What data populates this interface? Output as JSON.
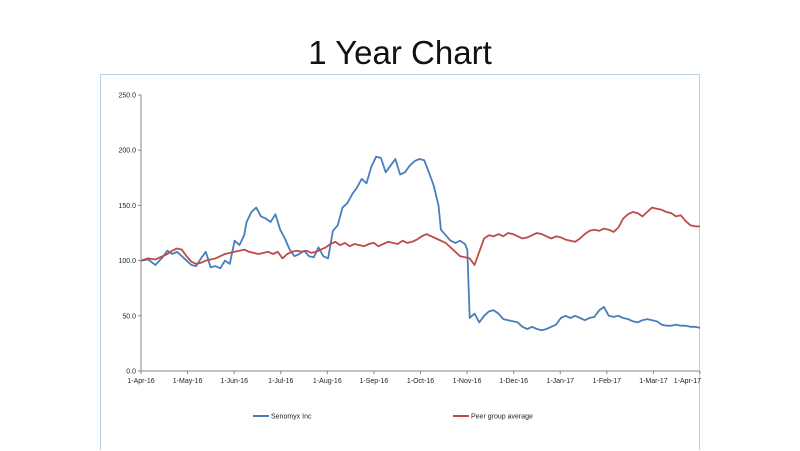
{
  "slide": {
    "title": "1 Year Chart"
  },
  "chart_data": {
    "type": "line",
    "title": "",
    "xlabel": "",
    "ylabel": "",
    "ylim": [
      0,
      250
    ],
    "y_ticks": [
      "0.0",
      "50.0",
      "100.0",
      "150.0",
      "200.0",
      "250.0"
    ],
    "x_ticks": [
      "1-Apr-16",
      "1-May-16",
      "1-Jun-16",
      "1-Jul-16",
      "1-Aug-16",
      "1-Sep-16",
      "1-Oct-16",
      "1-Nov-16",
      "1-Dec-16",
      "1-Jan-17",
      "1-Feb-17",
      "1-Mar-17",
      "1-Apr-17"
    ],
    "grid": false,
    "legend_position": "bottom",
    "series": [
      {
        "name": "Senomyx Inc",
        "color": "#4a7ebb",
        "points": [
          [
            0,
            100
          ],
          [
            3,
            101
          ],
          [
            6,
            96
          ],
          [
            9,
            103
          ],
          [
            11,
            109
          ],
          [
            13,
            106
          ],
          [
            15,
            108
          ],
          [
            17,
            104
          ],
          [
            19,
            100
          ],
          [
            21,
            96
          ],
          [
            23,
            95
          ],
          [
            25,
            102
          ],
          [
            27,
            108
          ],
          [
            29,
            94
          ],
          [
            31,
            95
          ],
          [
            33,
            93
          ],
          [
            35,
            100
          ],
          [
            37,
            97
          ],
          [
            39,
            118
          ],
          [
            41,
            114
          ],
          [
            43,
            123
          ],
          [
            44,
            135
          ],
          [
            46,
            144
          ],
          [
            48,
            148
          ],
          [
            50,
            140
          ],
          [
            52,
            138
          ],
          [
            54,
            135
          ],
          [
            56,
            142
          ],
          [
            58,
            128
          ],
          [
            60,
            120
          ],
          [
            62,
            110
          ],
          [
            64,
            104
          ],
          [
            66,
            106
          ],
          [
            68,
            109
          ],
          [
            70,
            104
          ],
          [
            72,
            103
          ],
          [
            74,
            112
          ],
          [
            76,
            104
          ],
          [
            78,
            102
          ],
          [
            80,
            127
          ],
          [
            82,
            132
          ],
          [
            84,
            148
          ],
          [
            86,
            152
          ],
          [
            88,
            160
          ],
          [
            90,
            166
          ],
          [
            92,
            174
          ],
          [
            94,
            170
          ],
          [
            96,
            185
          ],
          [
            98,
            194
          ],
          [
            100,
            193
          ],
          [
            102,
            180
          ],
          [
            104,
            186
          ],
          [
            106,
            192
          ],
          [
            108,
            178
          ],
          [
            110,
            180
          ],
          [
            112,
            186
          ],
          [
            114,
            190
          ],
          [
            116,
            192
          ],
          [
            118,
            191
          ],
          [
            120,
            180
          ],
          [
            122,
            168
          ],
          [
            124,
            150
          ],
          [
            125,
            128
          ],
          [
            127,
            123
          ],
          [
            129,
            118
          ],
          [
            131,
            116
          ],
          [
            133,
            118
          ],
          [
            135,
            115
          ],
          [
            136,
            110
          ],
          [
            137,
            48
          ],
          [
            139,
            52
          ],
          [
            141,
            44
          ],
          [
            143,
            50
          ],
          [
            145,
            54
          ],
          [
            147,
            55
          ],
          [
            149,
            52
          ],
          [
            151,
            47
          ],
          [
            153,
            46
          ],
          [
            155,
            45
          ],
          [
            157,
            44
          ],
          [
            159,
            40
          ],
          [
            161,
            38
          ],
          [
            163,
            40
          ],
          [
            165,
            38
          ],
          [
            167,
            37
          ],
          [
            169,
            38
          ],
          [
            171,
            40
          ],
          [
            173,
            42
          ],
          [
            175,
            48
          ],
          [
            177,
            50
          ],
          [
            179,
            48
          ],
          [
            181,
            50
          ],
          [
            183,
            48
          ],
          [
            185,
            46
          ],
          [
            187,
            48
          ],
          [
            189,
            49
          ],
          [
            191,
            55
          ],
          [
            193,
            58
          ],
          [
            195,
            50
          ],
          [
            197,
            49
          ],
          [
            199,
            50
          ],
          [
            201,
            48
          ],
          [
            203,
            47
          ],
          [
            205,
            45
          ],
          [
            207,
            44
          ],
          [
            209,
            46
          ],
          [
            211,
            47
          ],
          [
            213,
            46
          ],
          [
            215,
            45
          ],
          [
            217,
            42
          ],
          [
            219,
            41
          ],
          [
            221,
            41
          ],
          [
            223,
            42
          ],
          [
            225,
            41
          ],
          [
            227,
            41
          ],
          [
            229,
            40
          ],
          [
            231,
            40
          ],
          [
            233,
            39
          ]
        ]
      },
      {
        "name": "Peer group average",
        "color": "#be4b48",
        "points": [
          [
            0,
            100
          ],
          [
            3,
            102
          ],
          [
            6,
            101
          ],
          [
            9,
            104
          ],
          [
            11,
            106
          ],
          [
            13,
            109
          ],
          [
            15,
            111
          ],
          [
            17,
            110
          ],
          [
            19,
            104
          ],
          [
            21,
            99
          ],
          [
            23,
            97
          ],
          [
            25,
            98
          ],
          [
            27,
            100
          ],
          [
            29,
            101
          ],
          [
            31,
            102
          ],
          [
            33,
            104
          ],
          [
            35,
            106
          ],
          [
            37,
            107
          ],
          [
            39,
            108
          ],
          [
            41,
            109
          ],
          [
            43,
            110
          ],
          [
            45,
            108
          ],
          [
            47,
            107
          ],
          [
            49,
            106
          ],
          [
            51,
            107
          ],
          [
            53,
            108
          ],
          [
            55,
            106
          ],
          [
            57,
            108
          ],
          [
            59,
            102
          ],
          [
            61,
            106
          ],
          [
            63,
            108
          ],
          [
            65,
            109
          ],
          [
            67,
            108
          ],
          [
            69,
            109
          ],
          [
            71,
            107
          ],
          [
            73,
            108
          ],
          [
            75,
            110
          ],
          [
            77,
            112
          ],
          [
            79,
            115
          ],
          [
            81,
            117
          ],
          [
            83,
            114
          ],
          [
            85,
            116
          ],
          [
            87,
            113
          ],
          [
            89,
            115
          ],
          [
            91,
            114
          ],
          [
            93,
            113
          ],
          [
            95,
            115
          ],
          [
            97,
            116
          ],
          [
            99,
            113
          ],
          [
            101,
            115
          ],
          [
            103,
            117
          ],
          [
            105,
            116
          ],
          [
            107,
            115
          ],
          [
            109,
            118
          ],
          [
            111,
            116
          ],
          [
            113,
            117
          ],
          [
            115,
            119
          ],
          [
            117,
            122
          ],
          [
            119,
            124
          ],
          [
            121,
            122
          ],
          [
            123,
            120
          ],
          [
            125,
            118
          ],
          [
            127,
            116
          ],
          [
            129,
            112
          ],
          [
            131,
            108
          ],
          [
            133,
            104
          ],
          [
            135,
            103
          ],
          [
            137,
            102
          ],
          [
            139,
            96
          ],
          [
            141,
            108
          ],
          [
            143,
            120
          ],
          [
            145,
            123
          ],
          [
            147,
            122
          ],
          [
            149,
            124
          ],
          [
            151,
            122
          ],
          [
            153,
            125
          ],
          [
            155,
            124
          ],
          [
            157,
            122
          ],
          [
            159,
            120
          ],
          [
            161,
            121
          ],
          [
            163,
            123
          ],
          [
            165,
            125
          ],
          [
            167,
            124
          ],
          [
            169,
            122
          ],
          [
            171,
            120
          ],
          [
            173,
            122
          ],
          [
            175,
            121
          ],
          [
            177,
            119
          ],
          [
            179,
            118
          ],
          [
            181,
            117
          ],
          [
            183,
            120
          ],
          [
            185,
            124
          ],
          [
            187,
            127
          ],
          [
            189,
            128
          ],
          [
            191,
            127
          ],
          [
            193,
            129
          ],
          [
            195,
            128
          ],
          [
            197,
            126
          ],
          [
            199,
            130
          ],
          [
            201,
            138
          ],
          [
            203,
            142
          ],
          [
            205,
            144
          ],
          [
            207,
            143
          ],
          [
            209,
            140
          ],
          [
            211,
            144
          ],
          [
            213,
            148
          ],
          [
            215,
            147
          ],
          [
            217,
            146
          ],
          [
            219,
            144
          ],
          [
            221,
            143
          ],
          [
            223,
            140
          ],
          [
            225,
            141
          ],
          [
            227,
            136
          ],
          [
            229,
            132
          ],
          [
            231,
            131
          ],
          [
            233,
            131
          ]
        ]
      }
    ],
    "x_domain": [
      0,
      233
    ]
  }
}
